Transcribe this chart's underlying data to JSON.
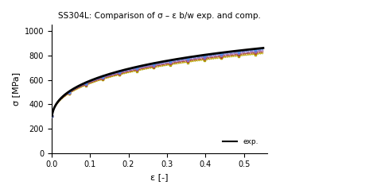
{
  "title": "SS304L: Comparison of σ – ε b/w exp. and comp.",
  "xlabel": "ε [-]",
  "ylabel": "σ [MPa]",
  "xlim": [
    0.0,
    0.56
  ],
  "ylim": [
    0,
    1050
  ],
  "xticks": [
    0.0,
    0.1,
    0.2,
    0.3,
    0.4,
    0.5
  ],
  "yticks": [
    0,
    200,
    400,
    600,
    800,
    1000
  ],
  "exp_color": "#000000",
  "curve_colors": [
    "#5599EE",
    "#5588DD",
    "#6677CC",
    "#8866BB",
    "#9966BB",
    "#AA77CC",
    "#AA5533",
    "#993322",
    "#BB4422",
    "#CCBB11",
    "#BBAA00",
    "#999900"
  ],
  "n_curves": 12,
  "legend_label": "exp.",
  "figsize": [
    4.74,
    2.43
  ],
  "dpi": 100
}
